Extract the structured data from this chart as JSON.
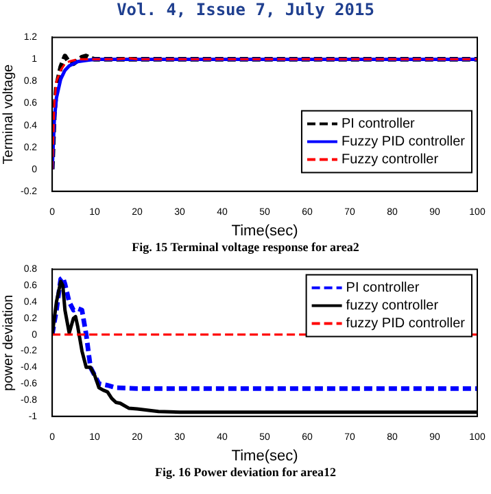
{
  "chart_data": [
    {
      "type": "line",
      "subtitle": "Vol. 4, Issue 7, July 2015",
      "xlabel": "Time(sec)",
      "ylabel": "Terminal voltage",
      "annotations": [
        "Fig. 15 Terminal voltage response for area2"
      ],
      "xlim": [
        0,
        100
      ],
      "xticks": [
        0,
        10,
        20,
        30,
        40,
        50,
        60,
        70,
        80,
        90,
        100
      ],
      "ylim": [
        -0.2,
        1.2
      ],
      "yticks": [
        -0.2,
        0,
        0.2,
        0.4,
        0.6,
        0.8,
        1,
        1.2
      ],
      "grid": false,
      "legend": "right",
      "marker": "none",
      "series": [
        {
          "name": "PI controller",
          "color": "#000000",
          "line_style": "dashed",
          "x": [
            0,
            0.5,
            1,
            2,
            3,
            4,
            5,
            6,
            7,
            8,
            9,
            10,
            100
          ],
          "values": [
            0,
            0.5,
            0.75,
            0.93,
            1.03,
            0.97,
            0.96,
            0.99,
            1.02,
            1.03,
            1.01,
            1.0,
            1.0
          ]
        },
        {
          "name": "Fuzzy PID controller",
          "color": "#0000ff",
          "line_style": "solid",
          "x": [
            0,
            0.5,
            1,
            2,
            3,
            4,
            5,
            6,
            8,
            10,
            100
          ],
          "values": [
            0,
            0.45,
            0.65,
            0.82,
            0.9,
            0.94,
            0.96,
            0.98,
            0.99,
            1.0,
            1.0
          ]
        },
        {
          "name": "Fuzzy controller",
          "color": "#ff0000",
          "line_style": "dashed",
          "x": [
            0,
            0.5,
            1,
            2,
            3,
            4,
            6,
            15,
            18,
            20,
            100
          ],
          "values": [
            0,
            0.6,
            0.8,
            0.9,
            0.96,
            0.98,
            1.0,
            1.0,
            1.01,
            1.0,
            1.0
          ]
        }
      ]
    },
    {
      "type": "line",
      "xlabel": "Time(sec)",
      "ylabel": "power deviation",
      "annotations": [
        "Fig. 16 Power deviation  for area12"
      ],
      "xlim": [
        0,
        100
      ],
      "xticks": [
        0,
        10,
        20,
        30,
        40,
        50,
        60,
        70,
        80,
        90,
        100
      ],
      "ylim": [
        -1,
        0.8
      ],
      "yticks": [
        -1,
        -0.8,
        -0.6,
        -0.4,
        -0.2,
        0,
        0.2,
        0.4,
        0.6,
        0.8
      ],
      "grid": false,
      "legend": "top right",
      "marker": "none",
      "series": [
        {
          "name": "PI controller",
          "color": "#0000ff",
          "line_style": "dashed",
          "x": [
            0,
            1,
            2,
            2.5,
            3,
            4,
            5,
            6,
            7,
            8,
            9,
            10,
            11,
            13,
            15,
            20,
            100
          ],
          "values": [
            0,
            0.3,
            0.68,
            0.7,
            0.62,
            0.4,
            0.3,
            0.32,
            0.3,
            0.0,
            -0.4,
            -0.5,
            -0.6,
            -0.62,
            -0.65,
            -0.66,
            -0.66
          ]
        },
        {
          "name": "fuzzy controller",
          "color": "#000000",
          "line_style": "solid",
          "x": [
            0,
            1,
            2,
            2.5,
            3,
            4,
            5,
            5.5,
            6,
            7,
            8,
            9,
            10,
            11,
            12,
            13,
            14,
            15,
            16,
            18,
            20,
            25,
            30,
            100
          ],
          "values": [
            0,
            0.4,
            0.65,
            0.6,
            0.3,
            0.02,
            0.2,
            0.22,
            0.1,
            -0.2,
            -0.4,
            -0.4,
            -0.5,
            -0.65,
            -0.68,
            -0.7,
            -0.78,
            -0.83,
            -0.84,
            -0.9,
            -0.91,
            -0.94,
            -0.95,
            -0.95
          ]
        },
        {
          "name": "fuzzy PID controller",
          "color": "#ff0000",
          "line_style": "dashed",
          "x": [
            0,
            100
          ],
          "values": [
            0,
            0
          ]
        }
      ]
    }
  ]
}
